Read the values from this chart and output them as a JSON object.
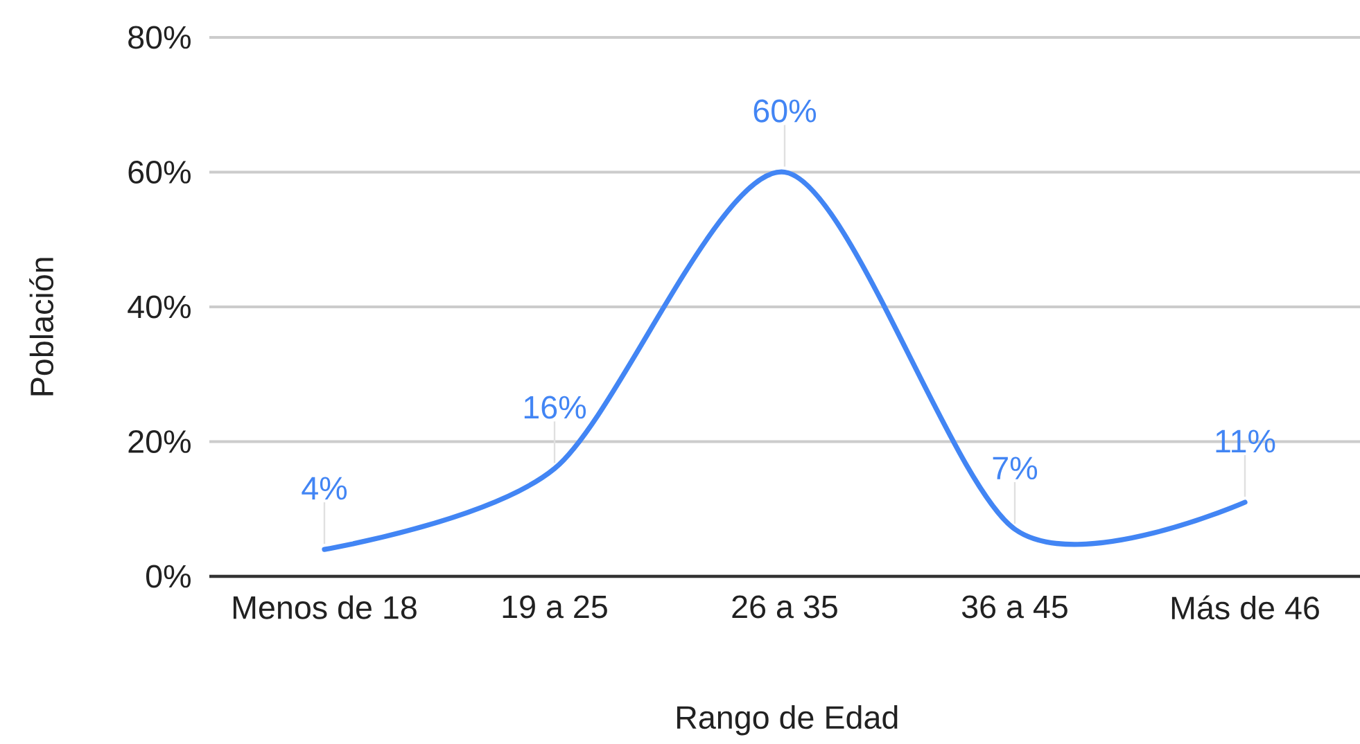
{
  "chart_data": {
    "type": "line",
    "xlabel": "Rango de Edad",
    "ylabel": "Población",
    "categories": [
      "Menos de 18",
      "19 a 25",
      "26 a 35",
      "36 a 45",
      "Más de 46"
    ],
    "series": [
      {
        "color": "#4285f4",
        "values": [
          4,
          16,
          60,
          7,
          11
        ],
        "value_labels": [
          "4%",
          "16%",
          "60%",
          "7%",
          "11%"
        ]
      }
    ],
    "ylim": [
      0,
      80
    ],
    "yticks": [
      {
        "value": 0,
        "label": "0%"
      },
      {
        "value": 20,
        "label": "20%"
      },
      {
        "value": 40,
        "label": "40%"
      },
      {
        "value": 60,
        "label": "60%"
      },
      {
        "value": 80,
        "label": "80%"
      }
    ],
    "grid": "y",
    "marker": "none",
    "line_style": "solid"
  }
}
